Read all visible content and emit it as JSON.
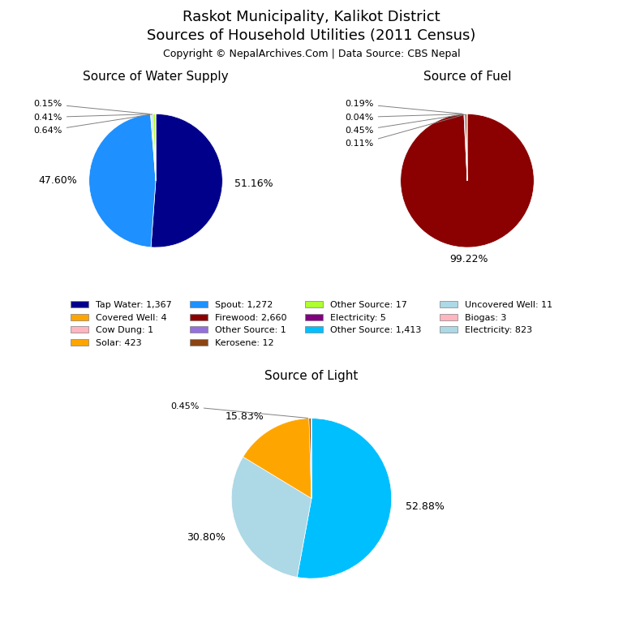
{
  "title": "Raskot Municipality, Kalikot District",
  "subtitle": "Sources of Household Utilities (2011 Census)",
  "annotations": [
    "Copyright © NepalArchives.Com | Data Source: CBS Nepal"
  ],
  "legend_entries": [
    [
      {
        "name": "Tap Water: 1,367",
        "color": "#00008B"
      },
      {
        "name": "Spout: 1,272",
        "color": "#1E90FF"
      },
      {
        "name": "Other Source: 17",
        "color": "#ADFF2F"
      },
      {
        "name": "Uncovered Well: 11",
        "color": "#ADD8E6"
      }
    ],
    [
      {
        "name": "Covered Well: 4",
        "color": "#FFA500"
      },
      {
        "name": "Firewood: 2,660",
        "color": "#8B0000"
      },
      {
        "name": "Electricity: 5",
        "color": "#800080"
      },
      {
        "name": "Biogas: 3",
        "color": "#FFB6C1"
      }
    ],
    [
      {
        "name": "Cow Dung: 1",
        "color": "#FFB6C1"
      },
      {
        "name": "Other Source: 1",
        "color": "#9370DB"
      },
      {
        "name": "Other Source: 1,413",
        "color": "#00BFFF"
      },
      {
        "name": "Electricity: 823",
        "color": "#ADD8E6"
      }
    ],
    [
      {
        "name": "Solar: 423",
        "color": "#FFA500"
      },
      {
        "name": "Kerosene: 12",
        "color": "#8B4513"
      }
    ]
  ],
  "chart_data": [
    {
      "type": "pie",
      "title": "Source of Water Supply",
      "values": [
        51.16,
        47.6,
        0.15,
        0.41,
        0.64,
        0.04
      ],
      "value_labels": [
        "51.16%",
        "47.60%",
        "0.15%",
        "0.41%",
        "0.64%",
        null
      ],
      "colors": [
        "#00008B",
        "#1E90FF",
        "#FFA500",
        "#ADD8E6",
        "#ADFF2F",
        "#FFB6C1"
      ]
    },
    {
      "type": "pie",
      "title": "Source of Fuel",
      "values": [
        99.22,
        0.19,
        0.04,
        0.45,
        0.11
      ],
      "value_labels": [
        "99.22%",
        "0.19%",
        "0.04%",
        "0.45%",
        "0.11%"
      ],
      "colors": [
        "#8B0000",
        "#800080",
        "#9370DB",
        "#8B4513",
        "#FFB6C1"
      ]
    },
    {
      "type": "pie",
      "title": "Source of Light",
      "values": [
        52.88,
        30.8,
        15.83,
        0.45,
        0.04
      ],
      "value_labels": [
        "52.88%",
        "30.80%",
        "15.83%",
        "0.45%",
        null
      ],
      "colors": [
        "#00BFFF",
        "#ADD8E6",
        "#FFA500",
        "#8B4513",
        "#808080"
      ]
    }
  ]
}
